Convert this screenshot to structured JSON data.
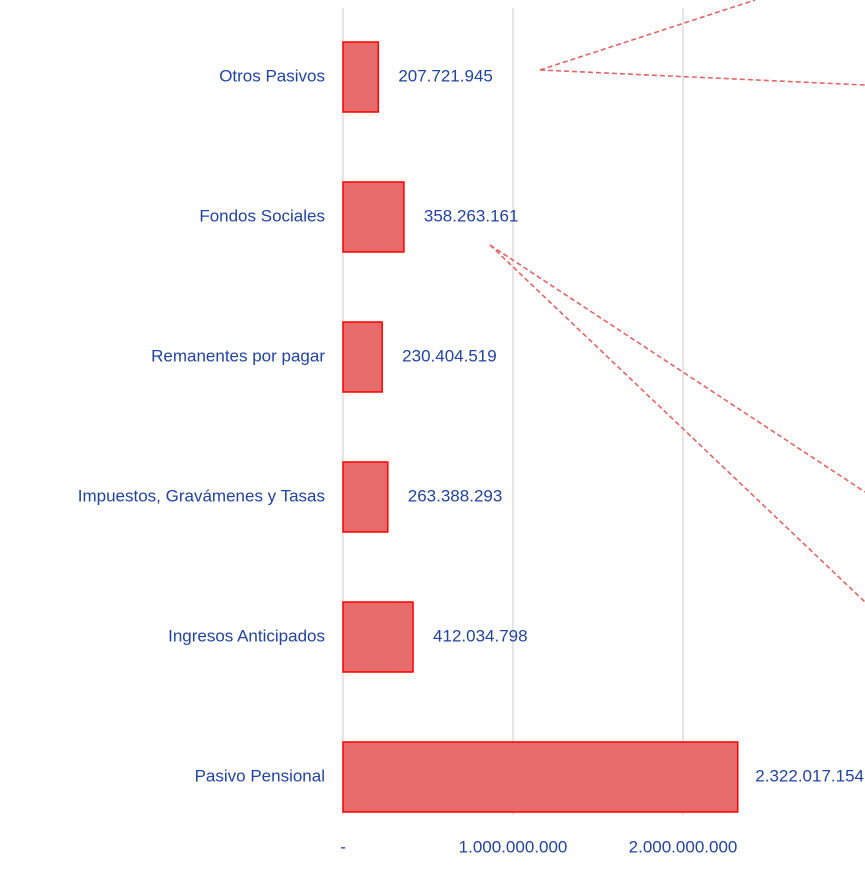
{
  "chart_data": {
    "type": "bar",
    "orientation": "horizontal",
    "categories": [
      "Otros Pasivos",
      "Fondos Sociales",
      "Remanentes por pagar",
      "Impuestos, Gravámenes y Tasas",
      "Ingresos Anticipados",
      "Pasivo Pensional"
    ],
    "values": [
      207721945,
      358263161,
      230404519,
      263388293,
      412034798,
      2322017154
    ],
    "value_labels": [
      "207.721.945",
      "358.263.161",
      "230.404.519",
      "263.388.293",
      "412.034.798",
      "2.322.017.154"
    ],
    "color": "#e66b6b",
    "edge_color": "#ff0000",
    "xlim": [
      0,
      3000000000
    ],
    "xticks": [
      {
        "value": 0,
        "label": "-"
      },
      {
        "value": 1000000000,
        "label": "1.000.000.000"
      },
      {
        "value": 2000000000,
        "label": "2.000.000.000"
      }
    ],
    "grid": true
  }
}
